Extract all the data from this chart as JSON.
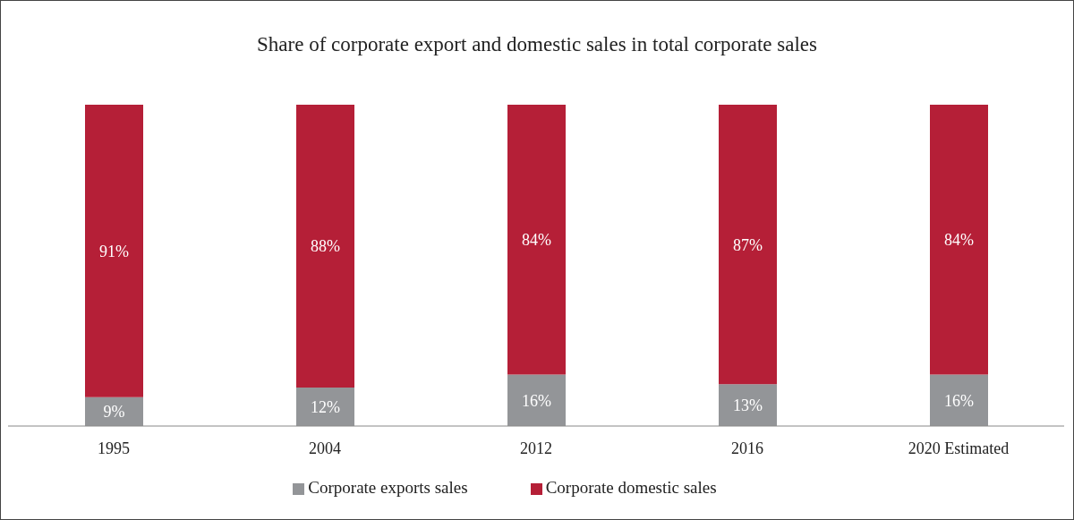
{
  "chart_data": {
    "type": "bar",
    "title": "Share of corporate export and domestic sales in total corporate sales",
    "categories": [
      "1995",
      "2004",
      "2012",
      "2016",
      "2020 Estimated"
    ],
    "stacked": true,
    "tick_labels": "x",
    "grid": false,
    "legend": "bottom",
    "series": [
      {
        "name": "Corporate exports sales",
        "color": "#939598",
        "values": [
          9,
          12,
          16,
          13,
          16
        ],
        "value_labels": [
          "9%",
          "12%",
          "16%",
          "13%",
          "16%"
        ]
      },
      {
        "name": "Corporate domestic sales",
        "color": "#b51f37",
        "values": [
          91,
          88,
          84,
          87,
          84
        ],
        "value_labels": [
          "91%",
          "88%",
          "84%",
          "87%",
          "84%"
        ]
      }
    ]
  }
}
